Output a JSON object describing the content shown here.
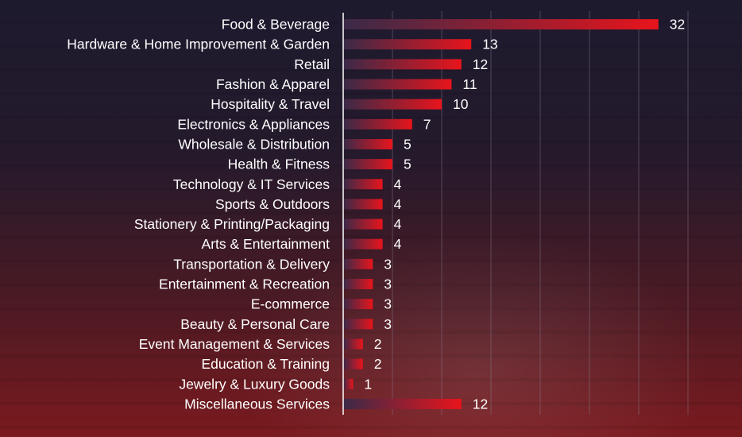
{
  "chart_data": {
    "type": "bar",
    "orientation": "horizontal",
    "categories": [
      "Food & Beverage",
      "Hardware & Home Improvement & Garden",
      "Retail",
      "Fashion & Apparel",
      "Hospitality & Travel",
      "Electronics & Appliances",
      "Wholesale & Distribution",
      "Health & Fitness",
      "Technology & IT Services",
      "Sports & Outdoors",
      "Stationery & Printing/Packaging",
      "Arts & Entertainment",
      "Transportation & Delivery",
      "Entertainment & Recreation",
      "E-commerce",
      "Beauty & Personal Care",
      "Event Management & Services",
      "Education & Training",
      "Jewelry & Luxury Goods",
      "Miscellaneous Services"
    ],
    "values": [
      32,
      13,
      12,
      11,
      10,
      7,
      5,
      5,
      4,
      4,
      4,
      4,
      3,
      3,
      3,
      3,
      2,
      2,
      1,
      12
    ],
    "xlim": [
      0,
      35
    ],
    "grid": true,
    "title": "",
    "xlabel": "",
    "ylabel": "",
    "colors": {
      "bar_start": "#3a2a48",
      "bar_end": "#e8141c",
      "text": "#ffffff",
      "gridline": "#8a7f90",
      "axis": "#ffffff"
    }
  }
}
